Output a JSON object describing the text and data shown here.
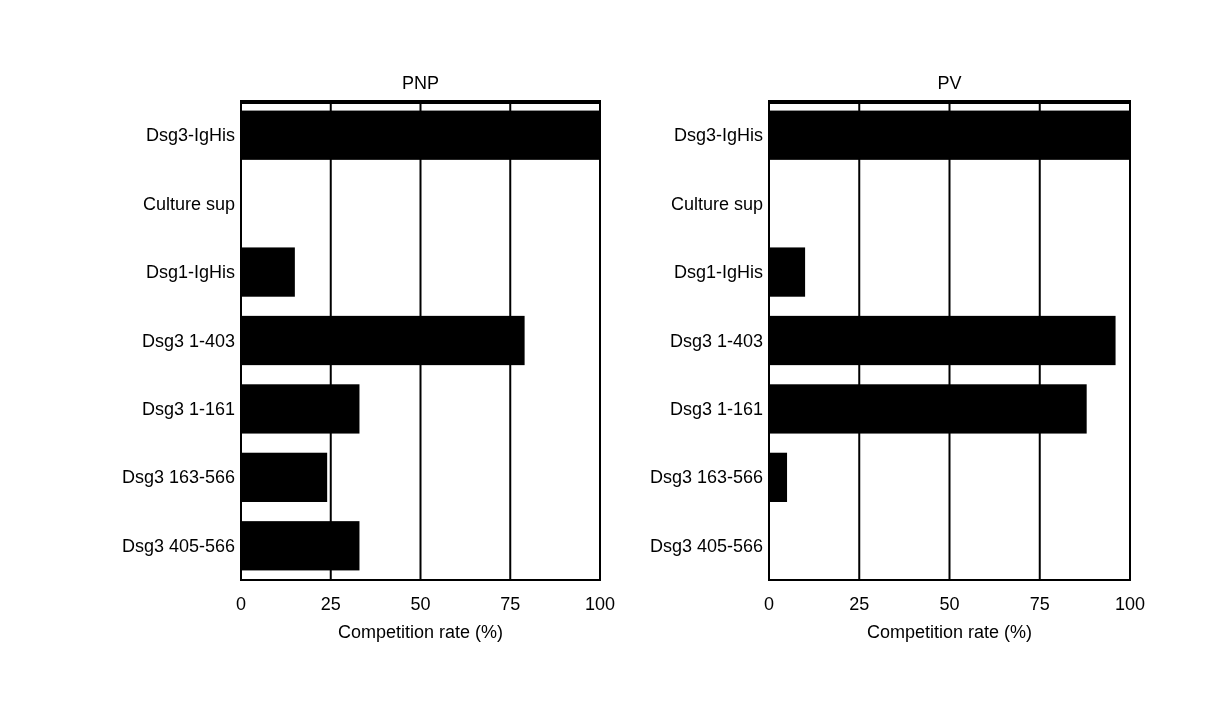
{
  "chart_data": [
    {
      "type": "bar",
      "orientation": "horizontal",
      "title": "PNP",
      "xlabel": "Competition rate (%)",
      "categories": [
        "Dsg3-IgHis",
        "Culture sup",
        "Dsg1-IgHis",
        "Dsg3 1-403",
        "Dsg3 1-161",
        "Dsg3 163-566",
        "Dsg3 405-566"
      ],
      "values": [
        100,
        0,
        15,
        79,
        33,
        24,
        33
      ],
      "color": "#000000",
      "xlim": [
        0,
        100
      ],
      "xticks": [
        0,
        25,
        50,
        75,
        100
      ],
      "grid": "x"
    },
    {
      "type": "bar",
      "orientation": "horizontal",
      "title": "PV",
      "xlabel": "Competition rate (%)",
      "categories": [
        "Dsg3-IgHis",
        "Culture sup",
        "Dsg1-IgHis",
        "Dsg3 1-403",
        "Dsg3 1-161",
        "Dsg3 163-566",
        "Dsg3 405-566"
      ],
      "values": [
        100,
        0,
        10,
        96,
        88,
        5,
        0
      ],
      "color": "#000000",
      "xlim": [
        0,
        100
      ],
      "xticks": [
        0,
        25,
        50,
        75,
        100
      ],
      "grid": "x"
    }
  ]
}
